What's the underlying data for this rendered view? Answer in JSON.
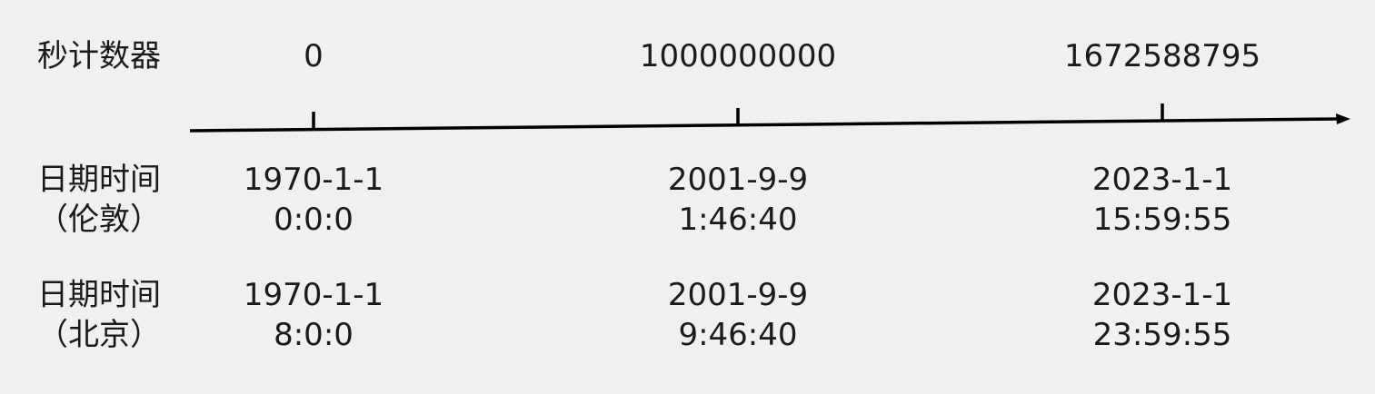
{
  "rows": {
    "counter_label": "秒计数器",
    "london_label": [
      "日期时间",
      "（伦敦）"
    ],
    "beijing_label": [
      "日期时间",
      "（北京）"
    ]
  },
  "columns": [
    {
      "counter": "0",
      "london": [
        "1970-1-1",
        "0:0:0"
      ],
      "beijing": [
        "1970-1-1",
        "8:0:0"
      ]
    },
    {
      "counter": "1000000000",
      "london": [
        "2001-9-9",
        "1:46:40"
      ],
      "beijing": [
        "2001-9-9",
        "9:46:40"
      ]
    },
    {
      "counter": "1672588795",
      "london": [
        "2023-1-1",
        "15:59:55"
      ],
      "beijing": [
        "2023-1-1",
        "23:59:55"
      ]
    }
  ],
  "colors": {
    "background": "#f0f0f0",
    "text": "#1a1a1a",
    "axis": "#000000"
  }
}
